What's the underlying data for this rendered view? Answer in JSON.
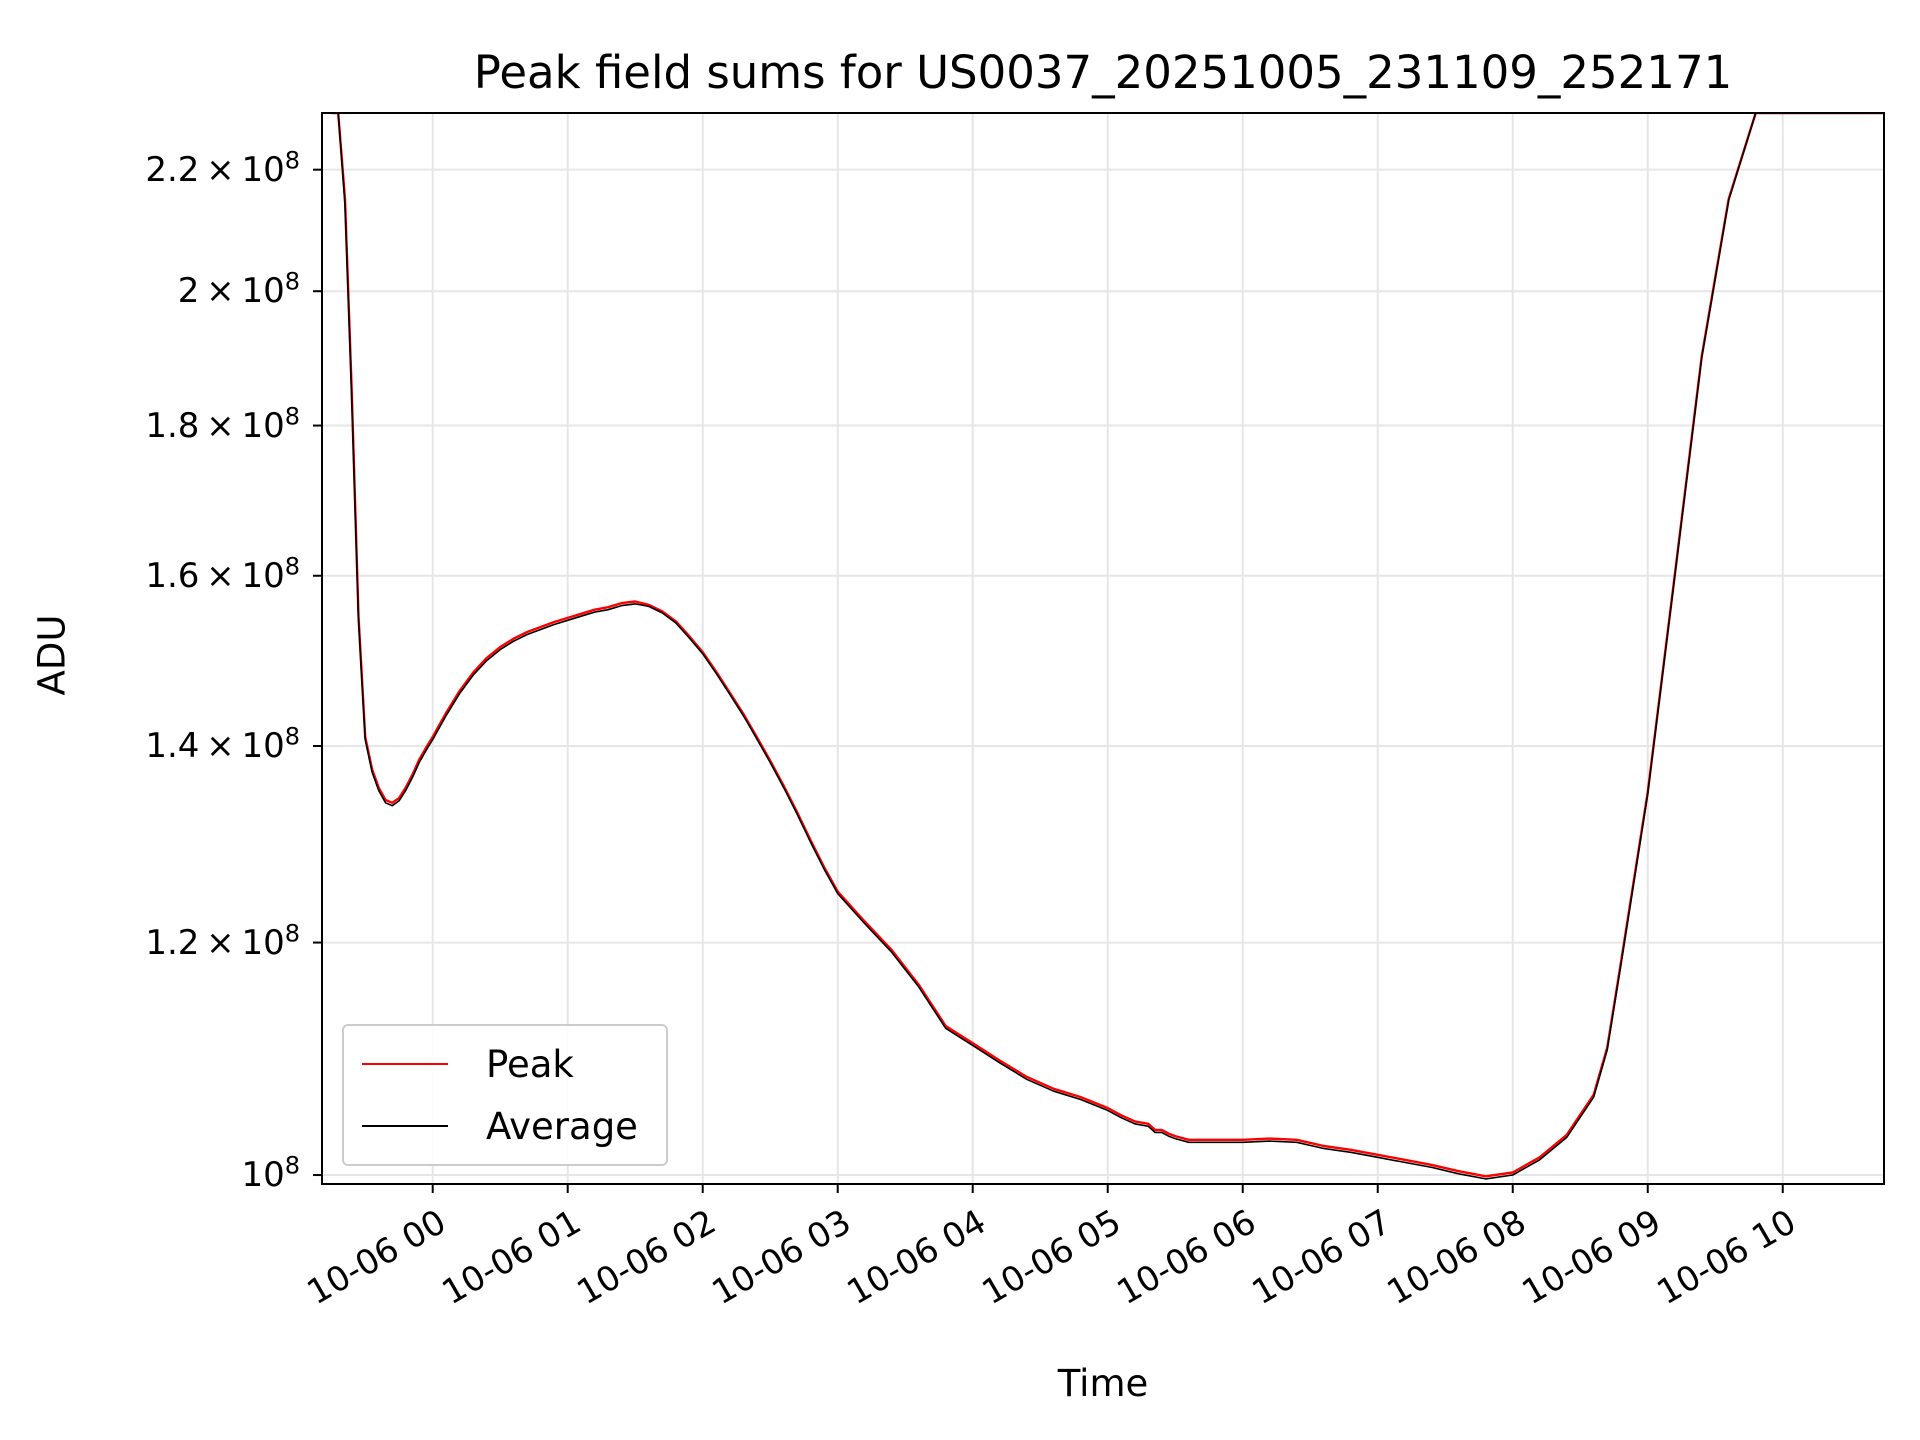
{
  "chart_data": {
    "type": "line",
    "title": "Peak field sums for US0037_20251005_231109_252171",
    "xlabel": "Time",
    "ylabel": "ADU",
    "y_scale": "log",
    "grid": true,
    "legend_position": "lower-left",
    "xlim_hours": [
      -0.82,
      10.75
    ],
    "ylim": [
      99300000,
      230000000
    ],
    "x_ticks": [
      "10-06 00",
      "10-06 01",
      "10-06 02",
      "10-06 03",
      "10-06 04",
      "10-06 05",
      "10-06 06",
      "10-06 07",
      "10-06 08",
      "10-06 09",
      "10-06 10"
    ],
    "y_ticks": [
      {
        "value": 100000000,
        "mantissa": "",
        "label": "10",
        "exp": "8"
      },
      {
        "value": 120000000,
        "mantissa": "1.2",
        "label": "10",
        "exp": "8"
      },
      {
        "value": 140000000,
        "mantissa": "1.4",
        "label": "10",
        "exp": "8"
      },
      {
        "value": 160000000,
        "mantissa": "1.6",
        "label": "10",
        "exp": "8"
      },
      {
        "value": 180000000,
        "mantissa": "1.8",
        "label": "10",
        "exp": "8"
      },
      {
        "value": 200000000,
        "mantissa": "2",
        "label": "10",
        "exp": "8"
      },
      {
        "value": 220000000,
        "mantissa": "2.2",
        "label": "10",
        "exp": "8"
      }
    ],
    "series": [
      {
        "name": "Peak",
        "color": "#ff0000",
        "x_hours": [
          -0.75,
          -0.7,
          -0.65,
          -0.6,
          -0.55,
          -0.5,
          -0.45,
          -0.4,
          -0.35,
          -0.3,
          -0.25,
          -0.2,
          -0.15,
          -0.1,
          -0.05,
          0.0,
          0.1,
          0.2,
          0.3,
          0.4,
          0.5,
          0.6,
          0.7,
          0.8,
          0.9,
          1.0,
          1.1,
          1.2,
          1.3,
          1.4,
          1.5,
          1.6,
          1.7,
          1.8,
          1.9,
          2.0,
          2.1,
          2.2,
          2.3,
          2.4,
          2.5,
          2.6,
          2.7,
          2.8,
          2.9,
          3.0,
          3.2,
          3.4,
          3.6,
          3.8,
          4.0,
          4.2,
          4.4,
          4.6,
          4.8,
          5.0,
          5.1,
          5.2,
          5.3,
          5.35,
          5.4,
          5.45,
          5.5,
          5.6,
          5.8,
          6.0,
          6.2,
          6.4,
          6.6,
          6.8,
          7.0,
          7.2,
          7.4,
          7.6,
          7.8,
          8.0,
          8.2,
          8.4,
          8.6,
          8.7,
          8.8,
          9.0,
          9.2,
          9.4,
          9.6,
          9.8,
          9.9,
          9.95,
          10.0,
          10.05,
          10.1,
          10.15,
          10.2,
          10.25,
          10.3,
          10.4,
          10.5,
          10.6,
          10.75
        ],
        "values": [
          230000000,
          230000000,
          215000000,
          185000000,
          155000000,
          141000000,
          137500000,
          135500000,
          134200000,
          133900000,
          134400000,
          135500000,
          136900000,
          138500000,
          139800000,
          141000000,
          143700000,
          146200000,
          148300000,
          150000000,
          151300000,
          152300000,
          153100000,
          153700000,
          154300000,
          154800000,
          155300000,
          155800000,
          156100000,
          156600000,
          156800000,
          156400000,
          155600000,
          154400000,
          152600000,
          150700000,
          148400000,
          146000000,
          143600000,
          141000000,
          138400000,
          135700000,
          132900000,
          130000000,
          127300000,
          124900000,
          122000000,
          119300000,
          116100000,
          112400000,
          110900000,
          109400000,
          108000000,
          107000000,
          106300000,
          105400000,
          104800000,
          104300000,
          104100000,
          103600000,
          103600000,
          103300000,
          103100000,
          102800000,
          102800000,
          102800000,
          102900000,
          102800000,
          102300000,
          102000000,
          101600000,
          101200000,
          100800000,
          100300000,
          99900000,
          100200000,
          101400000,
          103200000,
          106500000,
          110500000,
          118000000,
          135000000,
          160000000,
          190000000,
          215000000,
          230000000,
          230000000,
          230000000,
          230000000,
          230000000,
          230000000,
          230000000,
          230000000,
          230000000,
          230000000,
          230000000,
          230000000,
          230000000,
          230000000
        ]
      },
      {
        "name": "Average",
        "color": "#000000",
        "x_hours": [
          -0.75,
          -0.7,
          -0.65,
          -0.6,
          -0.55,
          -0.5,
          -0.45,
          -0.4,
          -0.35,
          -0.3,
          -0.25,
          -0.2,
          -0.15,
          -0.1,
          -0.05,
          0.0,
          0.1,
          0.2,
          0.3,
          0.4,
          0.5,
          0.6,
          0.7,
          0.8,
          0.9,
          1.0,
          1.1,
          1.2,
          1.3,
          1.4,
          1.5,
          1.6,
          1.7,
          1.8,
          1.9,
          2.0,
          2.1,
          2.2,
          2.3,
          2.4,
          2.5,
          2.6,
          2.7,
          2.8,
          2.9,
          3.0,
          3.2,
          3.4,
          3.6,
          3.8,
          4.0,
          4.2,
          4.4,
          4.6,
          4.8,
          5.0,
          5.1,
          5.2,
          5.3,
          5.35,
          5.4,
          5.45,
          5.5,
          5.6,
          5.8,
          6.0,
          6.2,
          6.4,
          6.6,
          6.8,
          7.0,
          7.2,
          7.4,
          7.6,
          7.8,
          8.0,
          8.2,
          8.4,
          8.6,
          8.7,
          8.8,
          9.0,
          9.2,
          9.4,
          9.6,
          9.8,
          9.9,
          9.95,
          10.0,
          10.05,
          10.1,
          10.15,
          10.2,
          10.25,
          10.3,
          10.4,
          10.5,
          10.6,
          10.75
        ],
        "values": [
          230000000,
          230000000,
          214000000,
          184000000,
          154500000,
          140700000,
          137200000,
          135200000,
          133900000,
          133600000,
          134100000,
          135200000,
          136600000,
          138200000,
          139500000,
          140700000,
          143400000,
          145900000,
          148000000,
          149700000,
          151000000,
          152000000,
          152800000,
          153400000,
          154000000,
          154500000,
          155000000,
          155500000,
          155800000,
          156300000,
          156500000,
          156200000,
          155400000,
          154200000,
          152400000,
          150500000,
          148200000,
          145800000,
          143400000,
          140800000,
          138200000,
          135500000,
          132700000,
          129800000,
          127100000,
          124700000,
          121800000,
          119100000,
          115900000,
          112200000,
          110700000,
          109200000,
          107800000,
          106800000,
          106100000,
          105200000,
          104600000,
          104100000,
          103900000,
          103400000,
          103400000,
          103100000,
          102900000,
          102600000,
          102600000,
          102600000,
          102700000,
          102600000,
          102100000,
          101800000,
          101400000,
          101000000,
          100600000,
          100100000,
          99700000,
          100000000,
          101200000,
          103000000,
          106300000,
          110300000,
          117800000,
          134800000,
          159800000,
          189800000,
          214800000,
          230000000,
          230000000,
          230000000,
          230000000,
          230000000,
          230000000,
          230000000,
          230000000,
          230000000,
          230000000,
          230000000,
          230000000,
          230000000,
          230000000
        ]
      }
    ]
  },
  "legend": {
    "peak_label": "Peak",
    "average_label": "Average"
  }
}
